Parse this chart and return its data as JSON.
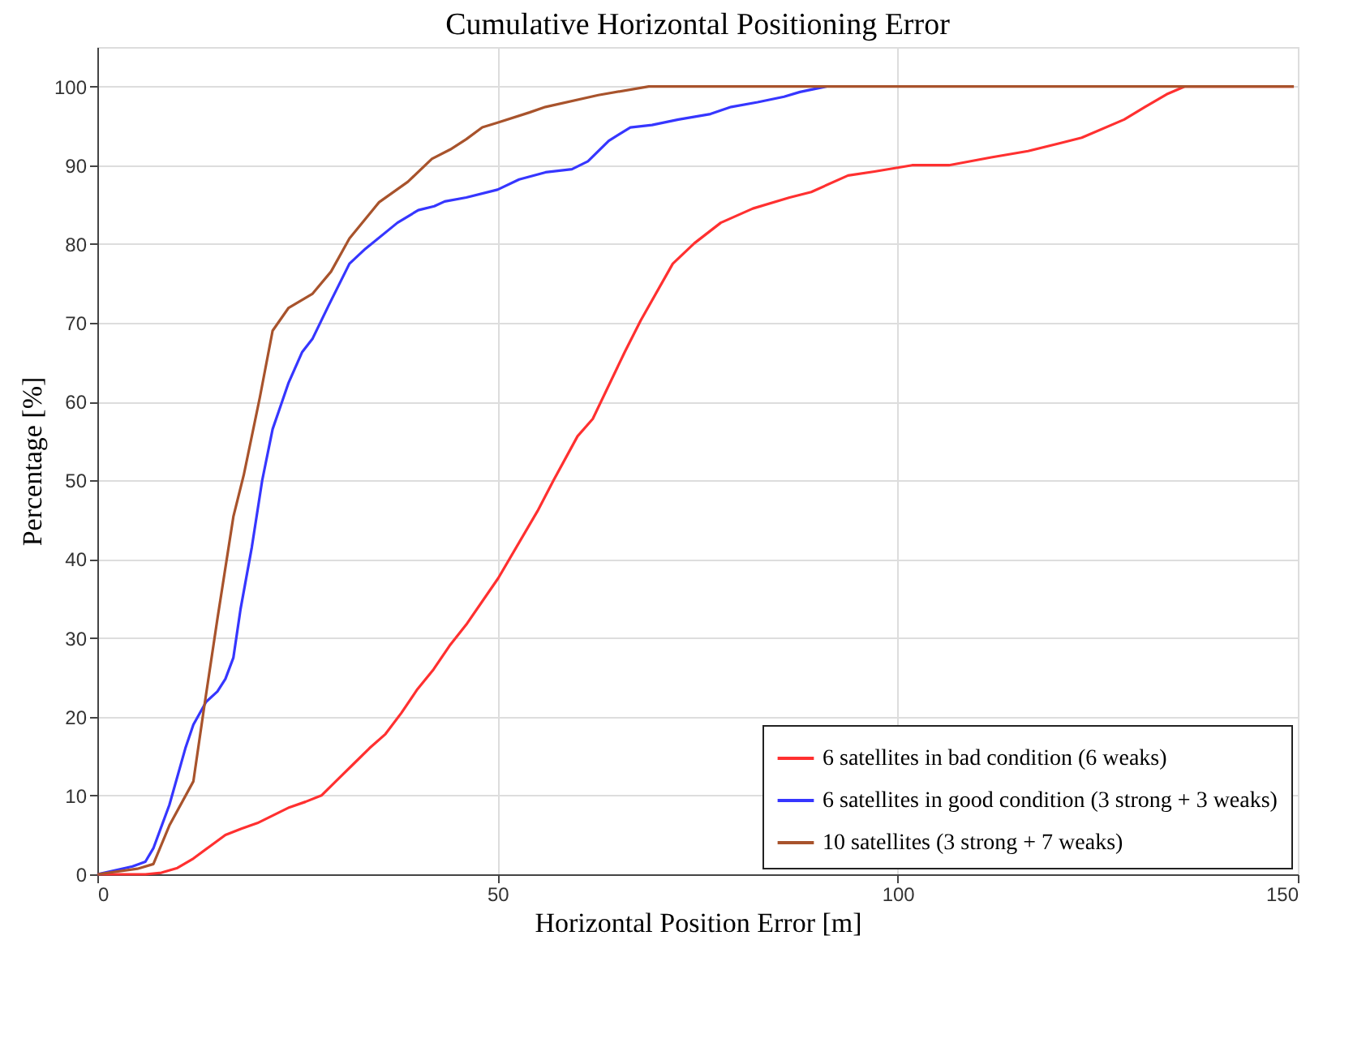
{
  "chart_data": {
    "type": "line",
    "title": "Cumulative Horizontal Positioning Error",
    "xlabel": "Horizontal Position Error [m]",
    "ylabel": "Percentage [%]",
    "xlim": [
      0,
      150
    ],
    "xticks": [
      0,
      50,
      100,
      150
    ],
    "ylim": [
      0,
      105
    ],
    "yticks": [
      0,
      10,
      20,
      30,
      40,
      50,
      60,
      70,
      80,
      90,
      100
    ],
    "grid": true,
    "legend": "bottom right",
    "line_style": "solid",
    "marker": "none",
    "series": [
      {
        "name": "6 satellites in bad condition (6 weaks)",
        "color": "#ff3030",
        "x": [
          0,
          6,
          8,
          10,
          12,
          14,
          16,
          18,
          20,
          22,
          24,
          26,
          28,
          30,
          32,
          34,
          36,
          38,
          40,
          42,
          44,
          46.1,
          50.1,
          55.0,
          57.0,
          60.0,
          61.9,
          65.9,
          67.9,
          71.9,
          74.6,
          77.9,
          81.9,
          86.5,
          89.2,
          93.8,
          97.1,
          101.8,
          106.4,
          111.7,
          116.3,
          120.3,
          123,
          128.3,
          130.9,
          133.6,
          135.9,
          149.5
        ],
        "values": [
          0,
          0,
          0.2,
          0.8,
          2,
          3.5,
          5,
          5.8,
          6.5,
          7.5,
          8.5,
          9.2,
          10,
          12,
          14,
          16,
          17.8,
          20.5,
          23.5,
          26,
          29,
          31.7,
          37.6,
          46.1,
          50,
          55.6,
          57.8,
          66.3,
          70.3,
          77.5,
          80.1,
          82.7,
          84.5,
          85.9,
          86.6,
          88.7,
          89.2,
          90,
          90,
          91,
          91.8,
          92.8,
          93.5,
          95.8,
          97.4,
          99,
          100,
          100
        ]
      },
      {
        "name": "6 satellites in good condition (3 strong + 3 weaks)",
        "color": "#3636ff",
        "x": [
          0,
          4.4,
          6,
          7,
          9,
          11,
          12,
          13.6,
          15,
          16,
          17,
          17.9,
          19.3,
          20.6,
          21.9,
          23.9,
          25.6,
          26.9,
          28.9,
          31.5,
          33.5,
          37.5,
          40.1,
          42.1,
          43.4,
          46.1,
          50,
          52.7,
          56.0,
          59.3,
          61.3,
          63.9,
          66.6,
          69.3,
          72.6,
          76.6,
          79.2,
          82.5,
          85.8,
          87.8,
          91.1
        ],
        "values": [
          0,
          1,
          1.6,
          3.3,
          8.8,
          16,
          19,
          21.9,
          23.2,
          24.8,
          27.5,
          33.7,
          41.5,
          50,
          56.5,
          62.4,
          66.3,
          68,
          72.2,
          77.5,
          79.4,
          82.7,
          84.3,
          84.8,
          85.4,
          85.9,
          86.9,
          88.2,
          89.1,
          89.5,
          90.5,
          93.1,
          94.8,
          95.1,
          95.8,
          96.5,
          97.4,
          98,
          98.7,
          99.3,
          100
        ]
      },
      {
        "name": "10 satellites (3 strong + 7 weaks)",
        "color": "#a8532c",
        "x": [
          0,
          5,
          7,
          9,
          12,
          13.3,
          15,
          17,
          18.3,
          20.3,
          21.9,
          23.9,
          26.9,
          29.2,
          31.5,
          35.2,
          38.8,
          41.8,
          44.1,
          46.1,
          48.1,
          50,
          54,
          56,
          62.6,
          68.9,
          149.5
        ],
        "values": [
          0,
          0.7,
          1.3,
          6.2,
          11.8,
          20.9,
          32.4,
          45.4,
          50.7,
          60.5,
          69,
          71.9,
          73.7,
          76.5,
          80.7,
          85.3,
          87.9,
          90.8,
          92,
          93.3,
          94.8,
          95.4,
          96.7,
          97.4,
          98.9,
          100,
          100
        ]
      }
    ]
  }
}
